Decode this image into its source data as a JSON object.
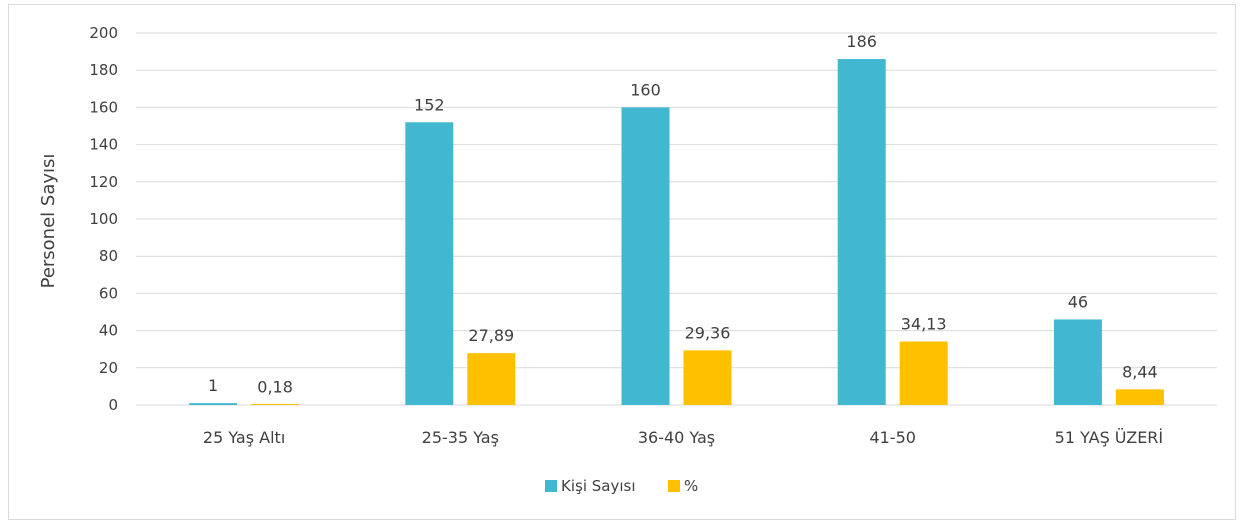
{
  "chart_data": {
    "type": "bar",
    "categories": [
      "25 Yaş Altı",
      "25-35 Yaş",
      "36-40 Yaş",
      "41-50",
      "51 YAŞ ÜZERİ"
    ],
    "series": [
      {
        "name": "Kişi Sayısı",
        "values": [
          1,
          152,
          160,
          186,
          46
        ],
        "labels": [
          "1",
          "152",
          "160",
          "186",
          "46"
        ],
        "color": "#41B8D0"
      },
      {
        "name": "%",
        "values": [
          0.18,
          27.89,
          29.36,
          34.13,
          8.44
        ],
        "labels": [
          "0,18",
          "27,89",
          "29,36",
          "34,13",
          "8,44"
        ],
        "color": "#FFC000"
      }
    ],
    "title": "",
    "xlabel": "",
    "ylabel": "Personel Sayısı",
    "ylim": [
      0,
      200
    ],
    "yticks": [
      0,
      20,
      40,
      60,
      80,
      100,
      120,
      140,
      160,
      180,
      200
    ],
    "ytick_labels": [
      "0",
      "20",
      "40",
      "60",
      "80",
      "100",
      "120",
      "140",
      "160",
      "180",
      "200"
    ],
    "grid": true,
    "legend": "bottom"
  }
}
